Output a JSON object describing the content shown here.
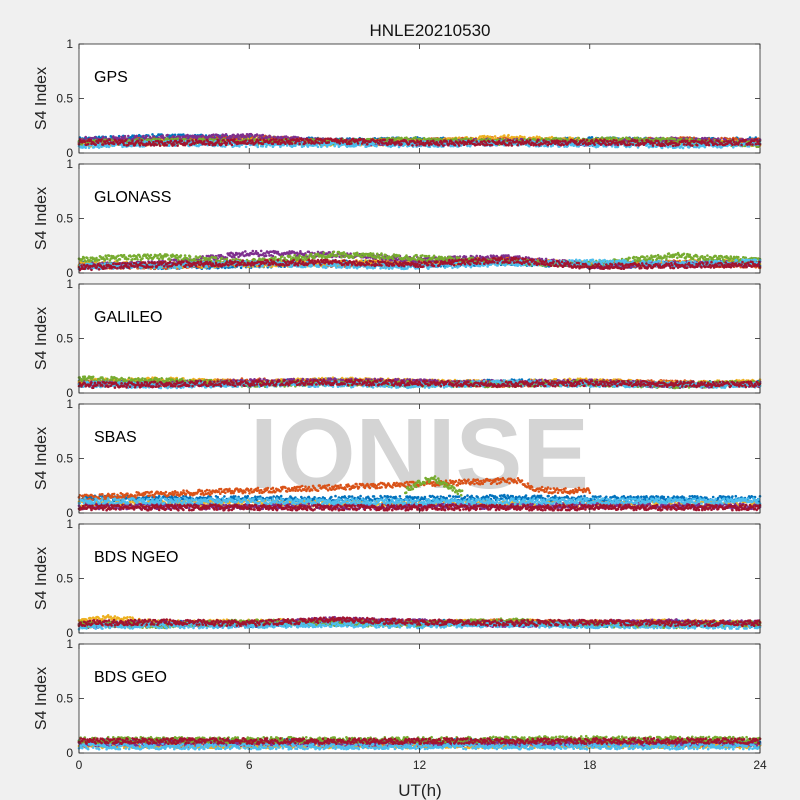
{
  "chart_data": {
    "type": "scatter",
    "title": "HNLE20210530",
    "xlabel": "UT(h)",
    "ylabel": "S4 Index",
    "xlim": [
      0,
      24
    ],
    "ylim": [
      0,
      1
    ],
    "xticks": [
      "0",
      "6",
      "12",
      "18",
      "24"
    ],
    "yticks": [
      "0",
      "0.5",
      "1"
    ],
    "watermark": "IONISE",
    "colors": [
      "#0072BD",
      "#D95319",
      "#EDB120",
      "#7E2F8E",
      "#77AC30",
      "#4DBEEE",
      "#A2142F"
    ],
    "panels": [
      {
        "name": "GPS",
        "series": [
          {
            "x": [
              0,
              3,
              6,
              9,
              12,
              15,
              18,
              21,
              24
            ],
            "y": [
              0.12,
              0.15,
              0.13,
              0.11,
              0.12,
              0.1,
              0.12,
              0.11,
              0.12
            ]
          },
          {
            "x": [
              0,
              3,
              6,
              9,
              12,
              15,
              18,
              21,
              24
            ],
            "y": [
              0.1,
              0.12,
              0.14,
              0.1,
              0.11,
              0.12,
              0.1,
              0.12,
              0.11
            ]
          },
          {
            "x": [
              0,
              3,
              6,
              9,
              12,
              15,
              18,
              21,
              24
            ],
            "y": [
              0.08,
              0.1,
              0.11,
              0.09,
              0.1,
              0.14,
              0.11,
              0.1,
              0.09
            ]
          },
          {
            "x": [
              0,
              3,
              6,
              9,
              12,
              15,
              18,
              21,
              24
            ],
            "y": [
              0.12,
              0.14,
              0.15,
              0.1,
              0.09,
              0.11,
              0.09,
              0.12,
              0.1
            ]
          },
          {
            "x": [
              0,
              3,
              6,
              9,
              12,
              15,
              18,
              21,
              24
            ],
            "y": [
              0.09,
              0.11,
              0.1,
              0.1,
              0.12,
              0.1,
              0.12,
              0.11,
              0.08
            ]
          },
          {
            "x": [
              0,
              3,
              6,
              9,
              12,
              15,
              18,
              21,
              24
            ],
            "y": [
              0.07,
              0.09,
              0.08,
              0.08,
              0.08,
              0.09,
              0.08,
              0.07,
              0.08
            ]
          },
          {
            "x": [
              0,
              3,
              6,
              9,
              12,
              15,
              18,
              21,
              24
            ],
            "y": [
              0.1,
              0.09,
              0.1,
              0.11,
              0.09,
              0.09,
              0.1,
              0.09,
              0.1
            ]
          }
        ]
      },
      {
        "name": "GLONASS",
        "series": [
          {
            "x": [
              0,
              3,
              6,
              9,
              12,
              15,
              18,
              21,
              24
            ],
            "y": [
              0.08,
              0.06,
              0.07,
              0.09,
              0.08,
              0.1,
              0.07,
              0.08,
              0.09
            ]
          },
          {
            "x": [
              0,
              3,
              6,
              9,
              12,
              15,
              18,
              21,
              24
            ],
            "y": [
              0.07,
              0.06,
              0.1,
              0.08,
              0.09,
              0.13,
              0.07,
              0.09,
              0.07
            ]
          },
          {
            "x": [
              0,
              3,
              6,
              9,
              12,
              15,
              18,
              21,
              24
            ],
            "y": [
              0.09,
              0.07,
              0.08,
              0.09,
              0.1,
              0.11,
              0.08,
              0.09,
              0.1
            ]
          },
          {
            "x": [
              0,
              3,
              6,
              9,
              12,
              15,
              18,
              21,
              24
            ],
            "y": [
              0.06,
              0.09,
              0.18,
              0.17,
              0.12,
              0.14,
              0.07,
              0.08,
              0.09
            ]
          },
          {
            "x": [
              0,
              3,
              6,
              9,
              12,
              15,
              18,
              21,
              24
            ],
            "y": [
              0.13,
              0.15,
              0.1,
              0.17,
              0.14,
              0.1,
              0.08,
              0.16,
              0.11
            ]
          },
          {
            "x": [
              0,
              3,
              6,
              9,
              12,
              15,
              18,
              21,
              24
            ],
            "y": [
              0.06,
              0.07,
              0.09,
              0.07,
              0.06,
              0.09,
              0.1,
              0.08,
              0.1
            ]
          },
          {
            "x": [
              0,
              3,
              6,
              9,
              12,
              15,
              18,
              21,
              24
            ],
            "y": [
              0.05,
              0.08,
              0.09,
              0.1,
              0.08,
              0.12,
              0.06,
              0.07,
              0.08
            ]
          }
        ]
      },
      {
        "name": "GALILEO",
        "series": [
          {
            "x": [
              0,
              3,
              6,
              9,
              12,
              15,
              18,
              21,
              24
            ],
            "y": [
              0.1,
              0.09,
              0.09,
              0.11,
              0.08,
              0.1,
              0.09,
              0.08,
              0.09
            ]
          },
          {
            "x": [
              0,
              3,
              6,
              9,
              12,
              15,
              18,
              21,
              24
            ],
            "y": [
              0.09,
              0.08,
              0.11,
              0.1,
              0.09,
              0.08,
              0.1,
              0.09,
              0.08
            ]
          },
          {
            "x": [
              0,
              3,
              6,
              9,
              12,
              15,
              18,
              21,
              24
            ],
            "y": [
              0.1,
              0.12,
              0.09,
              0.12,
              0.1,
              0.09,
              0.11,
              0.08,
              0.1
            ]
          },
          {
            "x": [
              0,
              3,
              6,
              9,
              12,
              15,
              18,
              21,
              24
            ],
            "y": [
              0.09,
              0.08,
              0.1,
              0.11,
              0.1,
              0.09,
              0.1,
              0.07,
              0.08
            ]
          },
          {
            "x": [
              0,
              3,
              6,
              9,
              12,
              15,
              18,
              21,
              24
            ],
            "y": [
              0.13,
              0.11,
              0.08,
              0.09,
              0.08,
              0.08,
              0.09,
              0.07,
              0.09
            ]
          },
          {
            "x": [
              0,
              3,
              6,
              9,
              12,
              15,
              18,
              21,
              24
            ],
            "y": [
              0.08,
              0.07,
              0.08,
              0.08,
              0.07,
              0.09,
              0.08,
              0.08,
              0.07
            ]
          },
          {
            "x": [
              0,
              3,
              6,
              9,
              12,
              15,
              18,
              21,
              24
            ],
            "y": [
              0.07,
              0.08,
              0.09,
              0.1,
              0.09,
              0.08,
              0.09,
              0.08,
              0.08
            ]
          }
        ]
      },
      {
        "name": "SBAS",
        "series": [
          {
            "x": [
              0,
              3,
              6,
              9,
              12,
              15,
              18,
              21,
              24
            ],
            "y": [
              0.14,
              0.13,
              0.13,
              0.13,
              0.13,
              0.14,
              0.13,
              0.13,
              0.13
            ]
          },
          {
            "x": [
              0,
              1,
              1.5,
              15.5,
              16,
              17,
              18
            ],
            "y": [
              0.14,
              0.15,
              0.16,
              0.3,
              0.22,
              0.2,
              0.21
            ]
          },
          {
            "x": [
              0,
              6,
              12,
              18,
              24
            ],
            "y": [
              0.08,
              0.09,
              0.08,
              0.08,
              0.08
            ]
          },
          {
            "x": [
              0,
              6,
              12,
              18,
              24
            ],
            "y": [
              0.06,
              0.06,
              0.06,
              0.07,
              0.06
            ]
          },
          {
            "x": [
              11.5,
              12,
              12.5,
              13,
              13.5
            ],
            "y": [
              0.2,
              0.28,
              0.32,
              0.25,
              0.18
            ]
          },
          {
            "x": [
              0,
              6,
              12,
              18,
              24
            ],
            "y": [
              0.11,
              0.11,
              0.1,
              0.11,
              0.11
            ]
          },
          {
            "x": [
              0,
              6,
              12,
              18,
              24
            ],
            "y": [
              0.05,
              0.05,
              0.05,
              0.05,
              0.05
            ]
          }
        ]
      },
      {
        "name": "BDS NGEO",
        "series": [
          {
            "x": [
              0,
              3,
              6,
              9,
              12,
              15,
              18,
              21,
              24
            ],
            "y": [
              0.08,
              0.09,
              0.08,
              0.09,
              0.1,
              0.09,
              0.08,
              0.09,
              0.08
            ]
          },
          {
            "x": [
              0,
              3,
              6,
              9,
              12,
              15,
              18,
              21,
              24
            ],
            "y": [
              0.09,
              0.08,
              0.09,
              0.1,
              0.09,
              0.1,
              0.09,
              0.08,
              0.09
            ]
          },
          {
            "x": [
              0,
              1,
              3,
              6,
              9,
              12,
              15,
              18,
              21,
              24
            ],
            "y": [
              0.1,
              0.14,
              0.09,
              0.1,
              0.11,
              0.09,
              0.1,
              0.09,
              0.1,
              0.08
            ]
          },
          {
            "x": [
              0,
              3,
              6,
              9,
              12,
              15,
              18,
              21,
              24
            ],
            "y": [
              0.07,
              0.09,
              0.08,
              0.12,
              0.1,
              0.08,
              0.09,
              0.1,
              0.09
            ]
          },
          {
            "x": [
              0,
              3,
              6,
              9,
              12,
              15,
              18,
              21,
              24
            ],
            "y": [
              0.08,
              0.07,
              0.1,
              0.09,
              0.08,
              0.11,
              0.08,
              0.07,
              0.09
            ]
          },
          {
            "x": [
              0,
              3,
              6,
              9,
              12,
              15,
              18,
              21,
              24
            ],
            "y": [
              0.06,
              0.07,
              0.07,
              0.08,
              0.07,
              0.08,
              0.07,
              0.07,
              0.06
            ]
          },
          {
            "x": [
              0,
              3,
              6,
              9,
              12,
              15,
              18,
              21,
              24
            ],
            "y": [
              0.09,
              0.1,
              0.09,
              0.12,
              0.1,
              0.09,
              0.1,
              0.09,
              0.09
            ]
          }
        ]
      },
      {
        "name": "BDS GEO",
        "series": [
          {
            "x": [
              0,
              6,
              12,
              18,
              24
            ],
            "y": [
              0.1,
              0.1,
              0.1,
              0.1,
              0.1
            ]
          },
          {
            "x": [
              0,
              6,
              12,
              18,
              24
            ],
            "y": [
              0.08,
              0.08,
              0.08,
              0.08,
              0.08
            ]
          },
          {
            "x": [
              0,
              6,
              12,
              18,
              24
            ],
            "y": [
              0.07,
              0.07,
              0.07,
              0.07,
              0.07
            ]
          },
          {
            "x": [
              0,
              6,
              12,
              18,
              24
            ],
            "y": [
              0.09,
              0.09,
              0.09,
              0.09,
              0.09
            ]
          },
          {
            "x": [
              0,
              6,
              12,
              18,
              24
            ],
            "y": [
              0.12,
              0.12,
              0.12,
              0.13,
              0.12
            ]
          },
          {
            "x": [
              0,
              6,
              12,
              18,
              24
            ],
            "y": [
              0.06,
              0.06,
              0.06,
              0.06,
              0.06
            ]
          },
          {
            "x": [
              0,
              6,
              12,
              18,
              24
            ],
            "y": [
              0.11,
              0.11,
              0.11,
              0.11,
              0.11
            ]
          }
        ]
      }
    ]
  }
}
